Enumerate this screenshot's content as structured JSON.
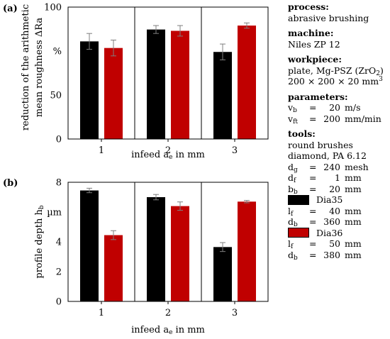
{
  "colors": {
    "black_series": "#000000",
    "red_series": "#c00000",
    "error_bar": "#7f7f7f"
  },
  "chart_data": [
    {
      "type": "bar",
      "panel_label": "(a)",
      "categories": [
        "1",
        "2",
        "3"
      ],
      "series": [
        {
          "name": "Dia35",
          "values": [
            74,
            83,
            66
          ],
          "errors": [
            6,
            3,
            6
          ]
        },
        {
          "name": "Dia36",
          "values": [
            69,
            82,
            86
          ],
          "errors": [
            6,
            4,
            2
          ]
        }
      ],
      "ylim": [
        0,
        100
      ],
      "yticks": [
        "0",
        "50",
        "%",
        "100"
      ],
      "ylabel_line1": "reduction of the arithmetic",
      "ylabel_line2": "mean roughness ΔRa",
      "xlabel_main": "infeed a",
      "xlabel_sub": "e",
      "xlabel_tail": " in mm",
      "grid": false
    },
    {
      "type": "bar",
      "panel_label": "(b)",
      "categories": [
        "1",
        "2",
        "3"
      ],
      "series": [
        {
          "name": "Dia35",
          "values": [
            7.45,
            7.0,
            3.65
          ],
          "errors": [
            0.15,
            0.18,
            0.3
          ]
        },
        {
          "name": "Dia36",
          "values": [
            4.45,
            6.4,
            6.7
          ],
          "errors": [
            0.3,
            0.28,
            0.08
          ]
        }
      ],
      "ylim": [
        0,
        8
      ],
      "yticks": [
        "0",
        "2",
        "4",
        "µm",
        "8"
      ],
      "ylabel_main": "profile depth h",
      "ylabel_sub": "b",
      "xlabel_main": "infeed a",
      "xlabel_sub": "e",
      "xlabel_tail": " in mm",
      "grid": false
    }
  ],
  "info": {
    "process_heading": "process:",
    "process_value": "abrasive brushing",
    "machine_heading": "machine:",
    "machine_value": "Niles ZP 12",
    "workpiece_heading": "workpiece:",
    "workpiece_line1": "plate, Mg-PSZ (ZrO",
    "workpiece_line1_sub": "2",
    "workpiece_line1_end": ")",
    "workpiece_line2": "200 × 200 × 20 mm",
    "workpiece_line2_sup": "3",
    "parameters_heading": "parameters:",
    "params": [
      {
        "sym": "v",
        "sub": "b",
        "value": "20",
        "unit": "m/s"
      },
      {
        "sym": "v",
        "sub": "ft",
        "value": "200",
        "unit": "mm/min"
      }
    ],
    "tools_heading": "tools:",
    "tools_line1": "round brushes",
    "tools_line2": "diamond, PA 6.12",
    "tool_params": [
      {
        "sym": "d",
        "sub": "g",
        "value": "240",
        "unit": "mesh"
      },
      {
        "sym": "d",
        "sub": "f",
        "value": "1",
        "unit": "mm"
      },
      {
        "sym": "b",
        "sub": "b",
        "value": "20",
        "unit": "mm"
      }
    ],
    "legend_dia35": "Dia35",
    "dia35_params": [
      {
        "sym": "l",
        "sub": "f",
        "value": "40",
        "unit": "mm"
      },
      {
        "sym": "d",
        "sub": "b",
        "value": "360",
        "unit": "mm"
      }
    ],
    "legend_dia36": "Dia36",
    "dia36_params": [
      {
        "sym": "l",
        "sub": "f",
        "value": "50",
        "unit": "mm"
      },
      {
        "sym": "d",
        "sub": "b",
        "value": "380",
        "unit": "mm"
      }
    ],
    "eq": "="
  }
}
